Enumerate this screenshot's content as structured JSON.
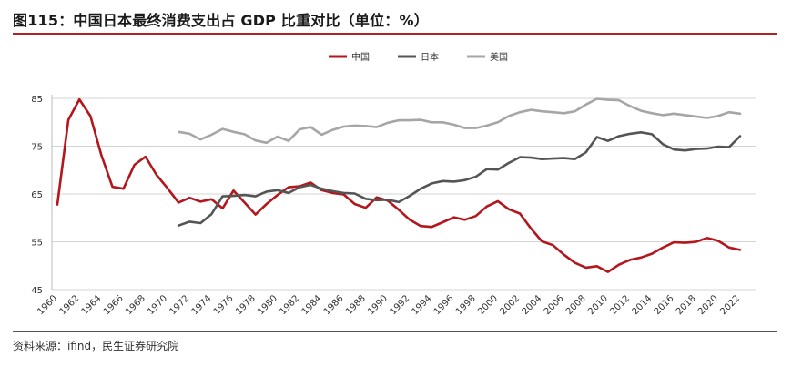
{
  "title": "图115：中国日本最终消费支出占 GDP 比重对比（单位：%）",
  "source": "资料来源：ifind，民生证券研究院",
  "chart_data": {
    "type": "line",
    "title": "图115：中国日本最终消费支出占 GDP 比重对比（单位：%）",
    "xlabel": "",
    "ylabel": "",
    "xlim": [
      1960,
      2022
    ],
    "ylim": [
      45,
      85
    ],
    "yticks": [
      45,
      55,
      65,
      75,
      85
    ],
    "xticks": [
      "1960",
      "1962",
      "1964",
      "1966",
      "1968",
      "1970",
      "1972",
      "1974",
      "1976",
      "1978",
      "1980",
      "1982",
      "1984",
      "1986",
      "1988",
      "1990",
      "1992",
      "1994",
      "1996",
      "1998",
      "2000",
      "2002",
      "2004",
      "2006",
      "2008",
      "2010",
      "2012",
      "2014",
      "2016",
      "2018",
      "2020",
      "2022"
    ],
    "grid": "horizontal",
    "legend": "top-center",
    "series": [
      {
        "name": "中国",
        "color": "#b3161d",
        "x": [
          1960,
          1961,
          1962,
          1963,
          1964,
          1965,
          1966,
          1967,
          1968,
          1969,
          1970,
          1971,
          1972,
          1973,
          1974,
          1975,
          1976,
          1977,
          1978,
          1979,
          1980,
          1981,
          1982,
          1983,
          1984,
          1985,
          1986,
          1987,
          1988,
          1989,
          1990,
          1991,
          1992,
          1993,
          1994,
          1995,
          1996,
          1997,
          1998,
          1999,
          2000,
          2001,
          2002,
          2003,
          2004,
          2005,
          2006,
          2007,
          2008,
          2009,
          2010,
          2011,
          2012,
          2013,
          2014,
          2015,
          2016,
          2017,
          2018,
          2019,
          2020,
          2021,
          2022
        ],
        "values": [
          62.8,
          80.5,
          84.8,
          81.3,
          73.1,
          66.5,
          66.1,
          71.1,
          72.8,
          69.0,
          66.2,
          63.2,
          64.2,
          63.4,
          63.9,
          62.0,
          65.7,
          63.2,
          60.7,
          62.9,
          64.8,
          66.4,
          66.6,
          67.4,
          65.8,
          65.2,
          64.9,
          62.9,
          62.1,
          64.3,
          63.6,
          61.7,
          59.6,
          58.3,
          58.1,
          59.1,
          60.1,
          59.6,
          60.4,
          62.4,
          63.5,
          61.8,
          60.9,
          57.8,
          55.1,
          54.3,
          52.3,
          50.6,
          49.6,
          49.9,
          48.7,
          50.2,
          51.2,
          51.7,
          52.5,
          53.8,
          54.9,
          54.8,
          55.0,
          55.8,
          55.2,
          53.8,
          53.3
        ]
      },
      {
        "name": "日本",
        "color": "#555555",
        "x": [
          1971,
          1972,
          1973,
          1974,
          1975,
          1976,
          1977,
          1978,
          1979,
          1980,
          1981,
          1982,
          1983,
          1984,
          1985,
          1986,
          1987,
          1988,
          1989,
          1990,
          1991,
          1992,
          1993,
          1994,
          1995,
          1996,
          1997,
          1998,
          1999,
          2000,
          2001,
          2002,
          2003,
          2004,
          2005,
          2006,
          2007,
          2008,
          2009,
          2010,
          2011,
          2012,
          2013,
          2014,
          2015,
          2016,
          2017,
          2018,
          2019,
          2020,
          2021,
          2022
        ],
        "values": [
          58.4,
          59.2,
          58.9,
          60.8,
          64.5,
          64.6,
          64.8,
          64.5,
          65.5,
          65.8,
          65.2,
          66.4,
          66.9,
          66.1,
          65.6,
          65.2,
          65.1,
          64.0,
          63.7,
          63.8,
          63.3,
          64.6,
          66.1,
          67.2,
          67.7,
          67.6,
          67.9,
          68.6,
          70.2,
          70.1,
          71.5,
          72.7,
          72.6,
          72.3,
          72.4,
          72.5,
          72.3,
          73.7,
          76.9,
          76.1,
          77.1,
          77.6,
          77.9,
          77.5,
          75.4,
          74.3,
          74.1,
          74.4,
          74.5,
          74.9,
          74.8,
          77.1
        ]
      },
      {
        "name": "美国",
        "color": "#a6a6a6",
        "x": [
          1971,
          1972,
          1973,
          1974,
          1975,
          1976,
          1977,
          1978,
          1979,
          1980,
          1981,
          1982,
          1983,
          1984,
          1985,
          1986,
          1987,
          1988,
          1989,
          1990,
          1991,
          1992,
          1993,
          1994,
          1995,
          1996,
          1997,
          1998,
          1999,
          2000,
          2001,
          2002,
          2003,
          2004,
          2005,
          2006,
          2007,
          2008,
          2009,
          2010,
          2011,
          2012,
          2013,
          2014,
          2015,
          2016,
          2017,
          2018,
          2019,
          2020,
          2021,
          2022
        ],
        "values": [
          78.0,
          77.6,
          76.4,
          77.4,
          78.6,
          78.0,
          77.5,
          76.2,
          75.7,
          77.0,
          76.1,
          78.5,
          79.0,
          77.4,
          78.4,
          79.1,
          79.3,
          79.2,
          79.0,
          79.9,
          80.4,
          80.4,
          80.5,
          80.0,
          80.0,
          79.5,
          78.8,
          78.8,
          79.3,
          80.0,
          81.3,
          82.1,
          82.6,
          82.3,
          82.1,
          81.9,
          82.3,
          83.7,
          84.9,
          84.7,
          84.6,
          83.4,
          82.4,
          81.9,
          81.5,
          81.8,
          81.5,
          81.2,
          80.9,
          81.3,
          82.1,
          81.8
        ]
      }
    ]
  }
}
